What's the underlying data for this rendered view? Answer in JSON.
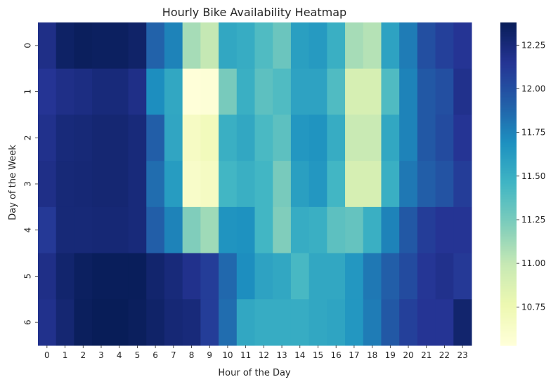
{
  "chart_data": {
    "type": "heatmap",
    "title": "Hourly Bike Availability Heatmap",
    "xlabel": "Hour of the Day",
    "ylabel": "Day of the Week",
    "x": [
      "0",
      "1",
      "2",
      "3",
      "4",
      "5",
      "6",
      "7",
      "8",
      "9",
      "10",
      "11",
      "12",
      "13",
      "14",
      "15",
      "16",
      "17",
      "18",
      "19",
      "20",
      "21",
      "22",
      "23"
    ],
    "y": [
      "0",
      "1",
      "2",
      "3",
      "4",
      "5",
      "6"
    ],
    "colormap": "YlGnBu",
    "vmin": 10.53,
    "vmax": 12.38,
    "colorbar_ticks": [
      "10.75",
      "11.00",
      "11.25",
      "11.50",
      "11.75",
      "12.00",
      "12.25"
    ],
    "values": [
      [
        12.2,
        12.33,
        12.36,
        12.35,
        12.35,
        12.32,
        11.9,
        11.75,
        11.1,
        11.0,
        11.55,
        11.52,
        11.4,
        11.3,
        11.6,
        11.63,
        11.5,
        11.1,
        11.05,
        11.58,
        11.78,
        12.0,
        12.08,
        12.15
      ],
      [
        12.15,
        12.2,
        12.22,
        12.25,
        12.25,
        12.2,
        11.7,
        11.55,
        10.53,
        10.55,
        11.25,
        11.5,
        11.35,
        11.4,
        11.58,
        11.58,
        11.4,
        10.9,
        10.9,
        11.4,
        11.75,
        11.95,
        12.0,
        12.18
      ],
      [
        12.18,
        12.25,
        12.26,
        12.28,
        12.28,
        12.25,
        11.92,
        11.56,
        10.65,
        10.7,
        11.5,
        11.55,
        11.42,
        11.35,
        11.65,
        11.67,
        11.52,
        10.98,
        10.98,
        11.55,
        11.75,
        11.95,
        12.02,
        12.15
      ],
      [
        12.2,
        12.26,
        12.27,
        12.28,
        12.28,
        12.25,
        11.85,
        11.62,
        10.62,
        10.66,
        11.45,
        11.5,
        11.45,
        11.25,
        11.6,
        11.65,
        11.45,
        10.9,
        10.9,
        11.5,
        11.8,
        11.92,
        11.98,
        12.1
      ],
      [
        12.12,
        12.26,
        12.26,
        12.27,
        12.27,
        12.25,
        11.92,
        11.75,
        11.22,
        11.12,
        11.67,
        11.68,
        11.45,
        11.22,
        11.52,
        11.5,
        11.35,
        11.32,
        11.5,
        11.75,
        11.95,
        12.1,
        12.15,
        12.15
      ],
      [
        12.2,
        12.3,
        12.35,
        12.37,
        12.37,
        12.37,
        12.3,
        12.25,
        12.18,
        12.1,
        11.87,
        11.7,
        11.58,
        11.55,
        11.43,
        11.55,
        11.55,
        11.65,
        11.8,
        11.92,
        12.02,
        12.14,
        12.18,
        12.12
      ],
      [
        12.18,
        12.28,
        12.36,
        12.38,
        12.38,
        12.36,
        12.32,
        12.27,
        12.25,
        12.1,
        11.85,
        11.55,
        11.52,
        11.52,
        11.52,
        11.55,
        11.57,
        11.65,
        11.78,
        11.95,
        12.08,
        12.15,
        12.15,
        12.3
      ]
    ]
  }
}
